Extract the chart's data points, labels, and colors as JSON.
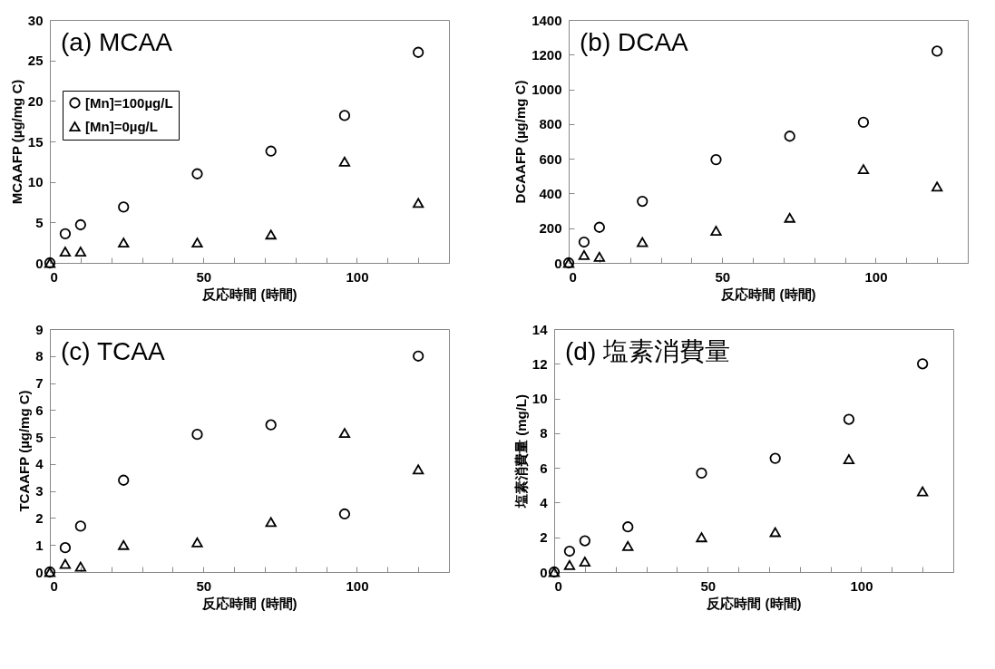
{
  "chart_data": [
    {
      "type": "scatter",
      "title": "(a) MCAA",
      "xlabel": "反応時間 (時間)",
      "ylabel": "MCAAFP (µg/mg C)",
      "x": [
        0,
        5,
        10,
        24,
        48,
        72,
        96,
        120
      ],
      "series": [
        {
          "name": "[Mn]=100µg/L",
          "color": "#000000",
          "marker": "circle",
          "values": [
            0,
            3.6,
            4.7,
            6.9,
            11,
            13.8,
            18.2,
            26
          ]
        },
        {
          "name": "[Mn]=0µg/L",
          "color": "#000000",
          "marker": "triangle",
          "values": [
            0,
            1.4,
            1.4,
            2.5,
            2.5,
            3.5,
            12.5,
            7.4
          ]
        }
      ],
      "xlim": [
        0,
        130
      ],
      "xticks": [
        0,
        {
          "value": 10,
          "label": null
        },
        {
          "value": 20,
          "label": null
        },
        {
          "value": 30,
          "label": null
        },
        {
          "value": 40,
          "label": null
        },
        50,
        {
          "value": 60,
          "label": null
        },
        {
          "value": 70,
          "label": null
        },
        {
          "value": 80,
          "label": null
        },
        {
          "value": 90,
          "label": null
        },
        100,
        {
          "value": 110,
          "label": null
        },
        {
          "value": 120,
          "label": null
        },
        {
          "value": 130,
          "label": null
        }
      ],
      "ylim": [
        0,
        30
      ],
      "yticks": [
        0,
        5,
        10,
        15,
        20,
        25,
        30
      ],
      "legend": "top left"
    },
    {
      "type": "scatter",
      "title": "(b) DCAA",
      "xlabel": "反応時間 (時間)",
      "ylabel": "DCAAFP (µg/mg C)",
      "x": [
        0,
        5,
        10,
        24,
        48,
        72,
        96,
        120
      ],
      "series": [
        {
          "color": "#000000",
          "marker": "circle",
          "values": [
            0,
            120,
            205,
            355,
            595,
            730,
            810,
            1220
          ]
        },
        {
          "color": "#000000",
          "marker": "triangle",
          "values": [
            0,
            45,
            35,
            120,
            185,
            260,
            540,
            440
          ]
        }
      ],
      "xlim": [
        0,
        130
      ],
      "xticks": [
        0,
        {
          "value": 10,
          "label": null
        },
        {
          "value": 20,
          "label": null
        },
        {
          "value": 30,
          "label": null
        },
        {
          "value": 40,
          "label": null
        },
        50,
        {
          "value": 60,
          "label": null
        },
        {
          "value": 70,
          "label": null
        },
        {
          "value": 80,
          "label": null
        },
        {
          "value": 90,
          "label": null
        },
        100,
        {
          "value": 110,
          "label": null
        },
        {
          "value": 120,
          "label": null
        },
        {
          "value": 130,
          "label": null
        }
      ],
      "ylim": [
        0,
        1400
      ],
      "yticks": [
        0,
        200,
        400,
        600,
        800,
        1000,
        1200,
        1400
      ]
    },
    {
      "type": "scatter",
      "title": "(c) TCAA",
      "xlabel": "反応時間 (時間)",
      "ylabel": "TCAAFP (µg/mg C)",
      "x": [
        0,
        5,
        10,
        24,
        48,
        72,
        96,
        120
      ],
      "series": [
        {
          "color": "#000000",
          "marker": "circle",
          "values": [
            0,
            0.9,
            1.7,
            3.4,
            5.1,
            5.45,
            2.15,
            8
          ]
        },
        {
          "color": "#000000",
          "marker": "triangle",
          "values": [
            0,
            0.3,
            0.2,
            1.0,
            1.1,
            1.85,
            5.15,
            3.8
          ]
        }
      ],
      "xlim": [
        0,
        130
      ],
      "xticks": [
        0,
        {
          "value": 10,
          "label": null
        },
        {
          "value": 20,
          "label": null
        },
        {
          "value": 30,
          "label": null
        },
        {
          "value": 40,
          "label": null
        },
        50,
        {
          "value": 60,
          "label": null
        },
        {
          "value": 70,
          "label": null
        },
        {
          "value": 80,
          "label": null
        },
        {
          "value": 90,
          "label": null
        },
        100,
        {
          "value": 110,
          "label": null
        },
        {
          "value": 120,
          "label": null
        },
        {
          "value": 130,
          "label": null
        }
      ],
      "ylim": [
        0,
        9
      ],
      "yticks": [
        0,
        1,
        2,
        3,
        4,
        5,
        6,
        7,
        8,
        9
      ]
    },
    {
      "type": "scatter",
      "title": "(d) 塩素消費量",
      "xlabel": "反応時間 (時間)",
      "ylabel": "塩素消費量 (mg/L)",
      "x": [
        0,
        5,
        10,
        24,
        48,
        72,
        96,
        120
      ],
      "series": [
        {
          "color": "#000000",
          "marker": "circle",
          "values": [
            0,
            1.2,
            1.8,
            2.6,
            5.7,
            6.55,
            8.8,
            12
          ]
        },
        {
          "color": "#000000",
          "marker": "triangle",
          "values": [
            0,
            0.4,
            0.6,
            1.5,
            2.0,
            2.3,
            6.5,
            4.65
          ]
        }
      ],
      "xlim": [
        0,
        130
      ],
      "xticks": [
        0,
        {
          "value": 10,
          "label": null
        },
        {
          "value": 20,
          "label": null
        },
        {
          "value": 30,
          "label": null
        },
        {
          "value": 40,
          "label": null
        },
        50,
        {
          "value": 60,
          "label": null
        },
        {
          "value": 70,
          "label": null
        },
        {
          "value": 80,
          "label": null
        },
        {
          "value": 90,
          "label": null
        },
        100,
        {
          "value": 110,
          "label": null
        },
        {
          "value": 120,
          "label": null
        },
        {
          "value": 130,
          "label": null
        }
      ],
      "ylim": [
        0,
        14
      ],
      "yticks": [
        0,
        2,
        4,
        6,
        8,
        10,
        12,
        14
      ]
    }
  ]
}
